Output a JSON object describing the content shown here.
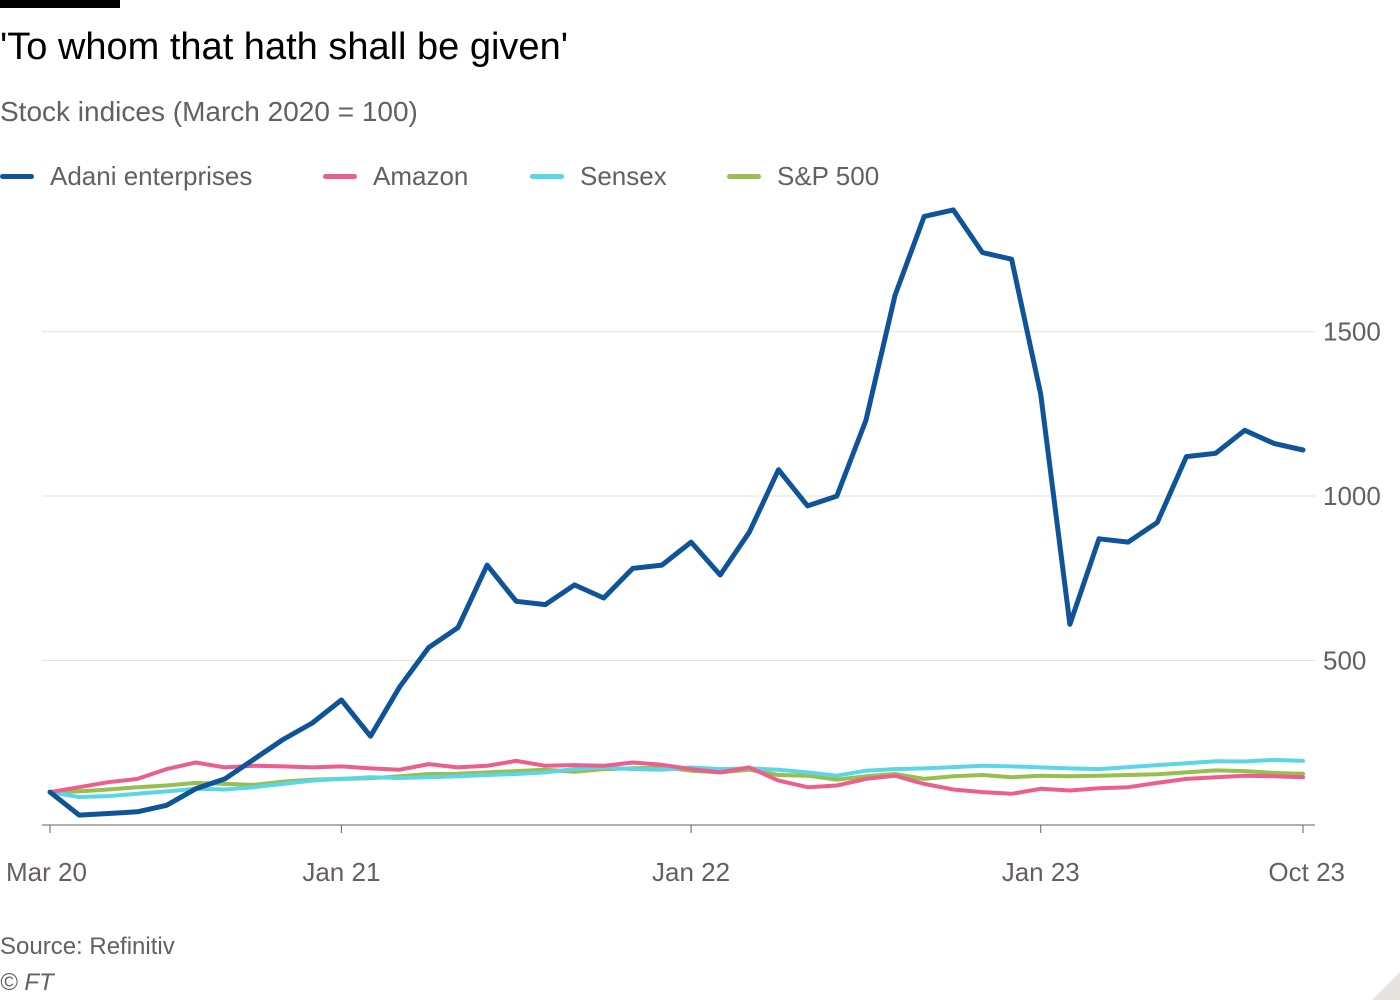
{
  "colors": {
    "adani": "#0f5499",
    "amazon": "#eb5e8d",
    "sensex": "#5ad6e6",
    "sp500": "#96bf4e",
    "grid": "#e6e2de",
    "axis": "#66605c"
  },
  "title": "'To whom that hath shall be given'",
  "subtitle": "Stock indices (March 2020 = 100)",
  "footer": {
    "source": "Source: Refinitiv",
    "copyright": "© FT"
  },
  "chart_data": {
    "type": "line",
    "title": "'To whom that hath shall be given'",
    "subtitle": "Stock indices (March 2020 = 100)",
    "xlabel": "",
    "ylabel": "",
    "x_axis": {
      "type": "time",
      "range": [
        "2020-03",
        "2023-10"
      ],
      "ticks": [
        "2020-03",
        "2021-01",
        "2022-01",
        "2023-01",
        "2023-10"
      ],
      "tick_labels": [
        "Mar 20",
        "Jan 21",
        "Jan 22",
        "Jan 23",
        "Oct 23"
      ]
    },
    "y_axis": {
      "range": [
        0,
        1900
      ],
      "ticks": [
        500,
        1000,
        1500
      ],
      "tick_labels": [
        "500",
        "1000",
        "1500"
      ],
      "position": "right"
    },
    "grid": true,
    "legend_position": "top-left",
    "series": [
      {
        "name": "Adani enterprises",
        "color": "#0f5499",
        "points": [
          [
            "2020-03",
            100
          ],
          [
            "2020-04",
            30
          ],
          [
            "2020-05",
            35
          ],
          [
            "2020-06",
            40
          ],
          [
            "2020-07",
            60
          ],
          [
            "2020-08",
            110
          ],
          [
            "2020-09",
            140
          ],
          [
            "2020-10",
            200
          ],
          [
            "2020-11",
            260
          ],
          [
            "2020-12",
            310
          ],
          [
            "2021-01",
            380
          ],
          [
            "2021-02",
            270
          ],
          [
            "2021-03",
            420
          ],
          [
            "2021-04",
            540
          ],
          [
            "2021-05",
            600
          ],
          [
            "2021-06",
            790
          ],
          [
            "2021-07",
            680
          ],
          [
            "2021-08",
            670
          ],
          [
            "2021-09",
            730
          ],
          [
            "2021-10",
            690
          ],
          [
            "2021-11",
            780
          ],
          [
            "2021-12",
            790
          ],
          [
            "2022-01",
            860
          ],
          [
            "2022-02",
            760
          ],
          [
            "2022-03",
            890
          ],
          [
            "2022-04",
            1080
          ],
          [
            "2022-05",
            970
          ],
          [
            "2022-06",
            1000
          ],
          [
            "2022-07",
            1230
          ],
          [
            "2022-08",
            1610
          ],
          [
            "2022-09",
            1850
          ],
          [
            "2022-10",
            1870
          ],
          [
            "2022-11",
            1740
          ],
          [
            "2022-12",
            1720
          ],
          [
            "2023-01",
            1310
          ],
          [
            "2023-02",
            610
          ],
          [
            "2023-03",
            870
          ],
          [
            "2023-04",
            860
          ],
          [
            "2023-05",
            920
          ],
          [
            "2023-06",
            1120
          ],
          [
            "2023-07",
            1130
          ],
          [
            "2023-08",
            1200
          ],
          [
            "2023-09",
            1160
          ],
          [
            "2023-10",
            1140
          ]
        ]
      },
      {
        "name": "Amazon",
        "color": "#eb5e8d",
        "points": [
          [
            "2020-03",
            100
          ],
          [
            "2020-04",
            115
          ],
          [
            "2020-05",
            130
          ],
          [
            "2020-06",
            140
          ],
          [
            "2020-07",
            170
          ],
          [
            "2020-08",
            190
          ],
          [
            "2020-09",
            175
          ],
          [
            "2020-10",
            180
          ],
          [
            "2020-11",
            178
          ],
          [
            "2020-12",
            175
          ],
          [
            "2021-01",
            178
          ],
          [
            "2021-02",
            172
          ],
          [
            "2021-03",
            168
          ],
          [
            "2021-04",
            185
          ],
          [
            "2021-05",
            175
          ],
          [
            "2021-06",
            180
          ],
          [
            "2021-07",
            195
          ],
          [
            "2021-08",
            180
          ],
          [
            "2021-09",
            182
          ],
          [
            "2021-10",
            180
          ],
          [
            "2021-11",
            190
          ],
          [
            "2021-12",
            183
          ],
          [
            "2022-01",
            170
          ],
          [
            "2022-02",
            160
          ],
          [
            "2022-03",
            175
          ],
          [
            "2022-04",
            135
          ],
          [
            "2022-05",
            115
          ],
          [
            "2022-06",
            120
          ],
          [
            "2022-07",
            140
          ],
          [
            "2022-08",
            150
          ],
          [
            "2022-09",
            125
          ],
          [
            "2022-10",
            108
          ],
          [
            "2022-11",
            100
          ],
          [
            "2022-12",
            95
          ],
          [
            "2023-01",
            110
          ],
          [
            "2023-02",
            105
          ],
          [
            "2023-03",
            112
          ],
          [
            "2023-04",
            115
          ],
          [
            "2023-05",
            128
          ],
          [
            "2023-06",
            140
          ],
          [
            "2023-07",
            145
          ],
          [
            "2023-08",
            150
          ],
          [
            "2023-09",
            148
          ],
          [
            "2023-10",
            145
          ]
        ]
      },
      {
        "name": "Sensex",
        "color": "#5ad6e6",
        "points": [
          [
            "2020-03",
            100
          ],
          [
            "2020-04",
            85
          ],
          [
            "2020-05",
            88
          ],
          [
            "2020-06",
            95
          ],
          [
            "2020-07",
            102
          ],
          [
            "2020-08",
            110
          ],
          [
            "2020-09",
            108
          ],
          [
            "2020-10",
            115
          ],
          [
            "2020-11",
            125
          ],
          [
            "2020-12",
            135
          ],
          [
            "2021-01",
            140
          ],
          [
            "2021-02",
            145
          ],
          [
            "2021-03",
            143
          ],
          [
            "2021-04",
            145
          ],
          [
            "2021-05",
            148
          ],
          [
            "2021-06",
            152
          ],
          [
            "2021-07",
            155
          ],
          [
            "2021-08",
            160
          ],
          [
            "2021-09",
            170
          ],
          [
            "2021-10",
            175
          ],
          [
            "2021-11",
            170
          ],
          [
            "2021-12",
            168
          ],
          [
            "2022-01",
            175
          ],
          [
            "2022-02",
            170
          ],
          [
            "2022-03",
            172
          ],
          [
            "2022-04",
            168
          ],
          [
            "2022-05",
            160
          ],
          [
            "2022-06",
            150
          ],
          [
            "2022-07",
            165
          ],
          [
            "2022-08",
            170
          ],
          [
            "2022-09",
            172
          ],
          [
            "2022-10",
            176
          ],
          [
            "2022-11",
            180
          ],
          [
            "2022-12",
            178
          ],
          [
            "2023-01",
            175
          ],
          [
            "2023-02",
            172
          ],
          [
            "2023-03",
            170
          ],
          [
            "2023-04",
            176
          ],
          [
            "2023-05",
            182
          ],
          [
            "2023-06",
            188
          ],
          [
            "2023-07",
            194
          ],
          [
            "2023-08",
            193
          ],
          [
            "2023-09",
            198
          ],
          [
            "2023-10",
            195
          ]
        ]
      },
      {
        "name": "S&P 500",
        "color": "#96bf4e",
        "points": [
          [
            "2020-03",
            100
          ],
          [
            "2020-04",
            102
          ],
          [
            "2020-05",
            108
          ],
          [
            "2020-06",
            115
          ],
          [
            "2020-07",
            120
          ],
          [
            "2020-08",
            128
          ],
          [
            "2020-09",
            125
          ],
          [
            "2020-10",
            122
          ],
          [
            "2020-11",
            132
          ],
          [
            "2020-12",
            138
          ],
          [
            "2021-01",
            140
          ],
          [
            "2021-02",
            142
          ],
          [
            "2021-03",
            148
          ],
          [
            "2021-04",
            155
          ],
          [
            "2021-05",
            156
          ],
          [
            "2021-06",
            160
          ],
          [
            "2021-07",
            164
          ],
          [
            "2021-08",
            168
          ],
          [
            "2021-09",
            162
          ],
          [
            "2021-10",
            170
          ],
          [
            "2021-11",
            172
          ],
          [
            "2021-12",
            175
          ],
          [
            "2022-01",
            165
          ],
          [
            "2022-02",
            160
          ],
          [
            "2022-03",
            168
          ],
          [
            "2022-04",
            152
          ],
          [
            "2022-05",
            150
          ],
          [
            "2022-06",
            138
          ],
          [
            "2022-07",
            148
          ],
          [
            "2022-08",
            155
          ],
          [
            "2022-09",
            140
          ],
          [
            "2022-10",
            148
          ],
          [
            "2022-11",
            152
          ],
          [
            "2022-12",
            145
          ],
          [
            "2023-01",
            150
          ],
          [
            "2023-02",
            148
          ],
          [
            "2023-03",
            150
          ],
          [
            "2023-04",
            152
          ],
          [
            "2023-05",
            154
          ],
          [
            "2023-06",
            160
          ],
          [
            "2023-07",
            166
          ],
          [
            "2023-08",
            164
          ],
          [
            "2023-09",
            158
          ],
          [
            "2023-10",
            156
          ]
        ]
      }
    ]
  }
}
